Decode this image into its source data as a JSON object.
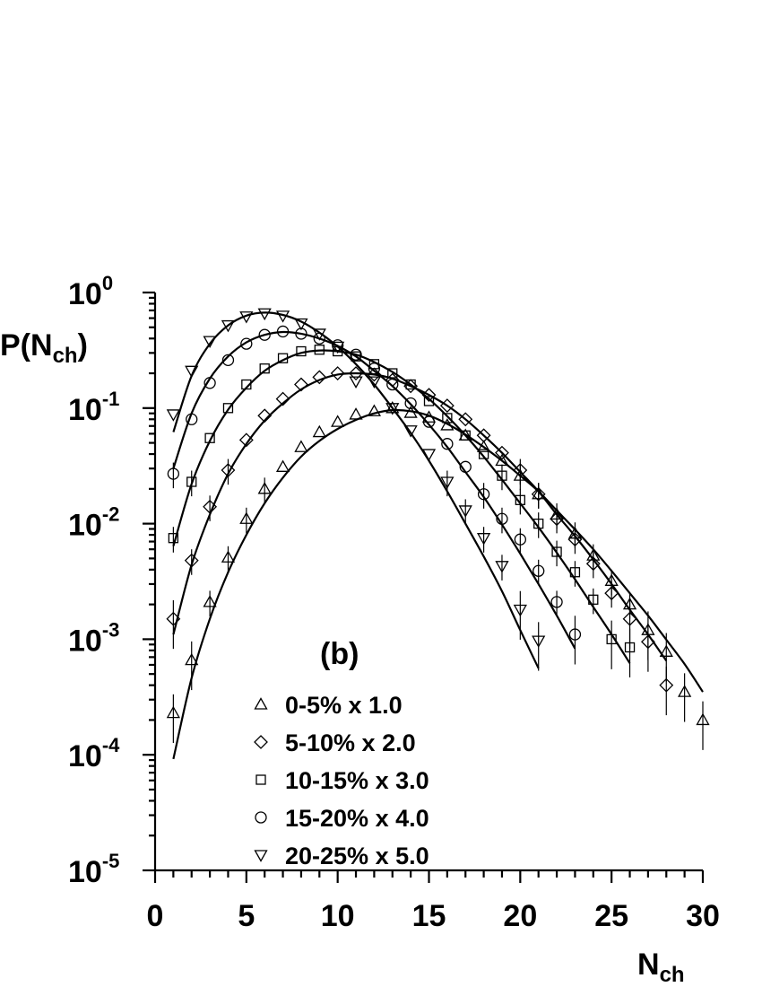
{
  "chart_data": {
    "type": "scatter",
    "panel_label": "(b)",
    "xlabel": {
      "main": "N",
      "sub": "ch"
    },
    "ylabel": {
      "main": "P(N",
      "sub": "ch",
      "close": ")"
    },
    "xlim": [
      0,
      30
    ],
    "ylim": [
      1e-05,
      1
    ],
    "y_scale": "log",
    "x_ticks": [
      0,
      5,
      10,
      15,
      20,
      25,
      30
    ],
    "y_ticks": [
      {
        "value": 1,
        "base": "10",
        "exp": "0"
      },
      {
        "value": 0.1,
        "base": "10",
        "exp": "-1"
      },
      {
        "value": 0.01,
        "base": "10",
        "exp": "-2"
      },
      {
        "value": 0.001,
        "base": "10",
        "exp": "-3"
      },
      {
        "value": 0.0001,
        "base": "10",
        "exp": "-4"
      },
      {
        "value": 1e-05,
        "base": "10",
        "exp": "-5"
      }
    ],
    "grid": false,
    "legend_position": "bottom-center",
    "series": [
      {
        "name": "0-5% x 1.0",
        "marker": "triangle-up",
        "points": [
          [
            1,
            0.00023
          ],
          [
            2,
            0.00066
          ],
          [
            3,
            0.0021
          ],
          [
            4,
            0.0051
          ],
          [
            5,
            0.011
          ],
          [
            6,
            0.02
          ],
          [
            7,
            0.031
          ],
          [
            8,
            0.046
          ],
          [
            9,
            0.062
          ],
          [
            10,
            0.076
          ],
          [
            11,
            0.088
          ],
          [
            12,
            0.094
          ],
          [
            13,
            0.1
          ],
          [
            14,
            0.091
          ],
          [
            15,
            0.083
          ],
          [
            16,
            0.071
          ],
          [
            17,
            0.058
          ],
          [
            18,
            0.046
          ],
          [
            19,
            0.035
          ],
          [
            20,
            0.026
          ],
          [
            21,
            0.018
          ],
          [
            22,
            0.012
          ],
          [
            23,
            0.0082
          ],
          [
            24,
            0.0053
          ],
          [
            25,
            0.0032
          ],
          [
            26,
            0.002
          ],
          [
            27,
            0.0012
          ],
          [
            28,
            0.00078
          ],
          [
            29,
            0.00035
          ],
          [
            30,
            0.0002
          ]
        ],
        "fit": [
          [
            1,
            9.2e-05
          ],
          [
            2,
            0.00046
          ],
          [
            3,
            0.0015
          ],
          [
            4,
            0.0038
          ],
          [
            5,
            0.008
          ],
          [
            6,
            0.015
          ],
          [
            7,
            0.025
          ],
          [
            8,
            0.038
          ],
          [
            9,
            0.052
          ],
          [
            10,
            0.066
          ],
          [
            11,
            0.079
          ],
          [
            12,
            0.09
          ],
          [
            13,
            0.096
          ],
          [
            14,
            0.094
          ],
          [
            15,
            0.086
          ],
          [
            16,
            0.073
          ],
          [
            17,
            0.059
          ],
          [
            18,
            0.046
          ],
          [
            19,
            0.035
          ],
          [
            20,
            0.026
          ],
          [
            21,
            0.019
          ],
          [
            22,
            0.013
          ],
          [
            23,
            0.0089
          ],
          [
            24,
            0.006
          ],
          [
            25,
            0.0039
          ],
          [
            26,
            0.0025
          ],
          [
            27,
            0.0016
          ],
          [
            28,
            0.00099
          ],
          [
            29,
            0.00061
          ],
          [
            30,
            0.00035
          ]
        ]
      },
      {
        "name": "5-10% x 2.0",
        "marker": "diamond",
        "points": [
          [
            1,
            0.0015
          ],
          [
            2,
            0.0048
          ],
          [
            3,
            0.014
          ],
          [
            4,
            0.029
          ],
          [
            5,
            0.053
          ],
          [
            6,
            0.086
          ],
          [
            7,
            0.12
          ],
          [
            8,
            0.16
          ],
          [
            9,
            0.185
          ],
          [
            10,
            0.2
          ],
          [
            11,
            0.2
          ],
          [
            12,
            0.195
          ],
          [
            13,
            0.175
          ],
          [
            14,
            0.155
          ],
          [
            15,
            0.13
          ],
          [
            16,
            0.105
          ],
          [
            17,
            0.08
          ],
          [
            18,
            0.058
          ],
          [
            19,
            0.041
          ],
          [
            20,
            0.029
          ],
          [
            21,
            0.018
          ],
          [
            22,
            0.011
          ],
          [
            23,
            0.0073
          ],
          [
            24,
            0.0045
          ],
          [
            25,
            0.0025
          ],
          [
            26,
            0.0015
          ],
          [
            27,
            0.00095
          ],
          [
            28,
            0.0004
          ]
        ],
        "fit": [
          [
            1,
            0.0011
          ],
          [
            2,
            0.0044
          ],
          [
            3,
            0.012
          ],
          [
            4,
            0.027
          ],
          [
            5,
            0.049
          ],
          [
            6,
            0.078
          ],
          [
            7,
            0.11
          ],
          [
            8,
            0.145
          ],
          [
            9,
            0.175
          ],
          [
            10,
            0.195
          ],
          [
            11,
            0.2
          ],
          [
            12,
            0.195
          ],
          [
            13,
            0.18
          ],
          [
            14,
            0.155
          ],
          [
            15,
            0.13
          ],
          [
            16,
            0.105
          ],
          [
            17,
            0.08
          ],
          [
            18,
            0.058
          ],
          [
            19,
            0.041
          ],
          [
            20,
            0.028
          ],
          [
            21,
            0.019
          ],
          [
            22,
            0.012
          ],
          [
            23,
            0.0078
          ],
          [
            24,
            0.0049
          ],
          [
            25,
            0.003
          ],
          [
            26,
            0.0018
          ],
          [
            27,
            0.0011
          ],
          [
            28,
            0.00065
          ]
        ]
      },
      {
        "name": "10-15% x 3.0",
        "marker": "square",
        "points": [
          [
            1,
            0.0075
          ],
          [
            2,
            0.023
          ],
          [
            3,
            0.055
          ],
          [
            4,
            0.1
          ],
          [
            5,
            0.16
          ],
          [
            6,
            0.22
          ],
          [
            7,
            0.27
          ],
          [
            8,
            0.31
          ],
          [
            9,
            0.32
          ],
          [
            10,
            0.31
          ],
          [
            11,
            0.28
          ],
          [
            12,
            0.24
          ],
          [
            13,
            0.2
          ],
          [
            14,
            0.16
          ],
          [
            15,
            0.115
          ],
          [
            16,
            0.082
          ],
          [
            17,
            0.058
          ],
          [
            18,
            0.04
          ],
          [
            19,
            0.026
          ],
          [
            20,
            0.016
          ],
          [
            21,
            0.01
          ],
          [
            22,
            0.0057
          ],
          [
            23,
            0.0038
          ],
          [
            24,
            0.0022
          ],
          [
            25,
            0.001
          ],
          [
            26,
            0.00085
          ]
        ],
        "fit": [
          [
            1,
            0.0064
          ],
          [
            2,
            0.022
          ],
          [
            3,
            0.052
          ],
          [
            4,
            0.097
          ],
          [
            5,
            0.15
          ],
          [
            6,
            0.21
          ],
          [
            7,
            0.26
          ],
          [
            8,
            0.3
          ],
          [
            9,
            0.315
          ],
          [
            10,
            0.31
          ],
          [
            11,
            0.29
          ],
          [
            12,
            0.25
          ],
          [
            13,
            0.205
          ],
          [
            14,
            0.16
          ],
          [
            15,
            0.12
          ],
          [
            16,
            0.085
          ],
          [
            17,
            0.058
          ],
          [
            18,
            0.038
          ],
          [
            19,
            0.024
          ],
          [
            20,
            0.015
          ],
          [
            21,
            0.0093
          ],
          [
            22,
            0.0056
          ],
          [
            23,
            0.0033
          ],
          [
            24,
            0.0019
          ],
          [
            25,
            0.0011
          ],
          [
            26,
            0.00062
          ]
        ]
      },
      {
        "name": "15-20% x 4.0",
        "marker": "circle",
        "points": [
          [
            1,
            0.027
          ],
          [
            2,
            0.08
          ],
          [
            3,
            0.165
          ],
          [
            4,
            0.26
          ],
          [
            5,
            0.36
          ],
          [
            6,
            0.43
          ],
          [
            7,
            0.46
          ],
          [
            8,
            0.44
          ],
          [
            9,
            0.4
          ],
          [
            10,
            0.35
          ],
          [
            11,
            0.29
          ],
          [
            12,
            0.22
          ],
          [
            13,
            0.16
          ],
          [
            14,
            0.11
          ],
          [
            15,
            0.076
          ],
          [
            16,
            0.049
          ],
          [
            17,
            0.031
          ],
          [
            18,
            0.018
          ],
          [
            19,
            0.011
          ],
          [
            20,
            0.0073
          ],
          [
            21,
            0.0039
          ],
          [
            22,
            0.0021
          ],
          [
            23,
            0.0011
          ]
        ],
        "fit": [
          [
            1,
            0.03
          ],
          [
            2,
            0.09
          ],
          [
            3,
            0.18
          ],
          [
            4,
            0.28
          ],
          [
            5,
            0.37
          ],
          [
            6,
            0.43
          ],
          [
            7,
            0.455
          ],
          [
            8,
            0.44
          ],
          [
            9,
            0.4
          ],
          [
            10,
            0.345
          ],
          [
            11,
            0.28
          ],
          [
            12,
            0.21
          ],
          [
            13,
            0.155
          ],
          [
            14,
            0.108
          ],
          [
            15,
            0.072
          ],
          [
            16,
            0.046
          ],
          [
            17,
            0.028
          ],
          [
            18,
            0.017
          ],
          [
            19,
            0.0098
          ],
          [
            20,
            0.0055
          ],
          [
            21,
            0.003
          ],
          [
            22,
            0.0016
          ],
          [
            23,
            0.00083
          ]
        ]
      },
      {
        "name": "20-25% x 5.0",
        "marker": "triangle-down",
        "points": [
          [
            1,
            0.088
          ],
          [
            2,
            0.21
          ],
          [
            3,
            0.38
          ],
          [
            4,
            0.52
          ],
          [
            5,
            0.62
          ],
          [
            6,
            0.66
          ],
          [
            7,
            0.63
          ],
          [
            8,
            0.54
          ],
          [
            9,
            0.44
          ],
          [
            10,
            0.34
          ],
          [
            11,
            0.17
          ],
          [
            12,
            0.17
          ],
          [
            13,
            0.1
          ],
          [
            14,
            0.064
          ],
          [
            15,
            0.04
          ],
          [
            16,
            0.023
          ],
          [
            17,
            0.013
          ],
          [
            18,
            0.0075
          ],
          [
            19,
            0.0043
          ],
          [
            20,
            0.0018
          ],
          [
            21,
            0.00097
          ]
        ],
        "fit": [
          [
            1,
            0.062
          ],
          [
            2,
            0.19
          ],
          [
            3,
            0.36
          ],
          [
            4,
            0.52
          ],
          [
            5,
            0.63
          ],
          [
            6,
            0.67
          ],
          [
            7,
            0.64
          ],
          [
            8,
            0.56
          ],
          [
            9,
            0.45
          ],
          [
            10,
            0.34
          ],
          [
            11,
            0.24
          ],
          [
            12,
            0.16
          ],
          [
            13,
            0.1
          ],
          [
            14,
            0.061
          ],
          [
            15,
            0.035
          ],
          [
            16,
            0.019
          ],
          [
            17,
            0.01
          ],
          [
            18,
            0.0052
          ],
          [
            19,
            0.0026
          ],
          [
            20,
            0.0012
          ],
          [
            21,
            0.00056
          ]
        ]
      }
    ]
  }
}
